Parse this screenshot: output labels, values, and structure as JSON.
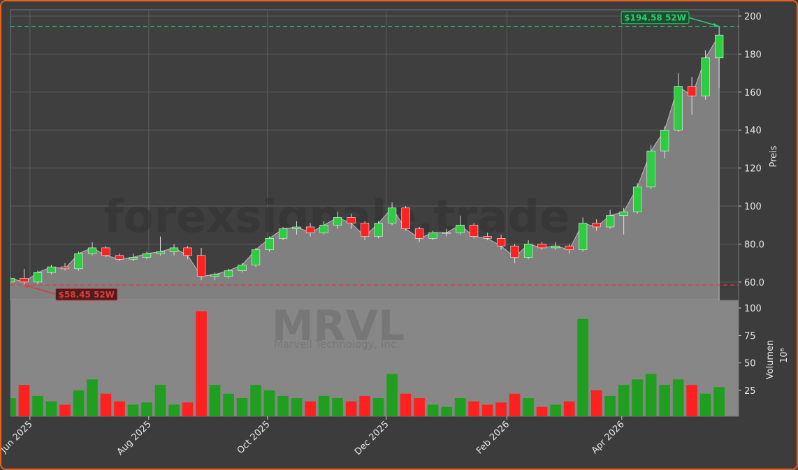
{
  "chart_data": {
    "type": "candlestick",
    "watermark": "forexsignale.trade",
    "ticker": "MRVL",
    "company": "Marvell Technology, Inc.",
    "ylabel": "Preis",
    "xlim": [
      "2025-05-22",
      "2026-05-31"
    ],
    "xticks": [
      {
        "value": "2025-06-01",
        "label": "Jun 2025"
      },
      {
        "value": "2025-08-01",
        "label": "Aug 2025"
      },
      {
        "value": "2025-10-01",
        "label": "Oct 2025"
      },
      {
        "value": "2025-12-01",
        "label": "Dec 2025"
      },
      {
        "value": "2026-02-01",
        "label": "Feb 2026"
      },
      {
        "value": "2026-04-01",
        "label": "Apr 2026"
      }
    ],
    "ylim": [
      50.4,
      203.3
    ],
    "yticks": [
      {
        "value": 60,
        "label": "60.0"
      },
      {
        "value": 80,
        "label": "80.0"
      },
      100,
      120,
      140,
      160,
      180,
      200
    ],
    "grid": true,
    "up_color": "#2ecc40",
    "down_color": "#ff2020",
    "area_color": "#808080",
    "x": [
      "2025-05-22",
      "2025-05-29",
      "2025-06-05",
      "2025-06-12",
      "2025-06-19",
      "2025-06-26",
      "2025-07-03",
      "2025-07-10",
      "2025-07-17",
      "2025-07-24",
      "2025-07-31",
      "2025-08-07",
      "2025-08-14",
      "2025-08-21",
      "2025-08-28",
      "2025-09-04",
      "2025-09-11",
      "2025-09-18",
      "2025-09-25",
      "2025-10-02",
      "2025-10-09",
      "2025-10-16",
      "2025-10-23",
      "2025-10-30",
      "2025-11-06",
      "2025-11-13",
      "2025-11-20",
      "2025-11-27",
      "2025-12-04",
      "2025-12-11",
      "2025-12-18",
      "2025-12-25",
      "2026-01-01",
      "2026-01-08",
      "2026-01-15",
      "2026-01-22",
      "2026-01-29",
      "2026-02-05",
      "2026-02-12",
      "2026-02-19",
      "2026-02-26",
      "2026-03-05",
      "2026-03-12",
      "2026-03-19",
      "2026-03-26",
      "2026-04-02",
      "2026-04-09",
      "2026-04-16",
      "2026-04-23",
      "2026-04-30",
      "2026-05-07",
      "2026-05-14",
      "2026-05-21"
    ],
    "open": [
      60,
      62,
      60,
      65,
      68,
      67,
      75,
      78,
      74,
      72,
      73,
      75,
      76,
      78,
      74,
      63,
      63,
      66,
      69,
      77,
      83,
      88,
      89,
      86,
      90,
      94,
      91,
      84,
      91,
      99,
      88,
      83,
      86,
      86,
      90,
      84,
      83,
      79,
      73,
      80,
      78,
      79,
      77,
      91,
      89,
      95,
      97,
      110,
      129,
      140,
      163,
      158,
      178
    ],
    "high": [
      63,
      67,
      66,
      69,
      70,
      76,
      81,
      79,
      75,
      75,
      76,
      84,
      80,
      79,
      78,
      65,
      67,
      70,
      78,
      84,
      89,
      92,
      91,
      92,
      97,
      96,
      92,
      92,
      102,
      100,
      89,
      87,
      88,
      95,
      91,
      86,
      85,
      80,
      82,
      81,
      81,
      80,
      94,
      93,
      98,
      99,
      112,
      132,
      142,
      170,
      168,
      182,
      194.58
    ],
    "low": [
      59,
      58.45,
      59,
      64,
      66,
      66,
      74,
      73,
      71,
      71,
      72,
      74,
      74,
      72,
      61,
      61,
      62,
      65,
      68,
      76,
      82,
      85,
      84,
      85,
      88,
      88,
      82,
      83,
      90,
      87,
      81,
      82,
      84,
      85,
      83,
      82,
      77,
      70,
      72,
      77,
      77,
      75,
      76,
      87,
      88,
      85,
      96,
      109,
      125,
      139,
      148,
      156,
      162
    ],
    "close": [
      62,
      60,
      65,
      68,
      67,
      75,
      78,
      74,
      72,
      73,
      75,
      76,
      78,
      74,
      63,
      64,
      66,
      69,
      77,
      83,
      88,
      89,
      86,
      90,
      94,
      91,
      84,
      91,
      99,
      88,
      83,
      86,
      86,
      90,
      84,
      83,
      79,
      73,
      80,
      78,
      79,
      77,
      91,
      89,
      95,
      97,
      110,
      129,
      140,
      163,
      158,
      178,
      190
    ],
    "annotations": [
      {
        "label": "$194.58 52W",
        "value": 194.58,
        "color": "#2ecc71"
      },
      {
        "label": "$58.45 52W",
        "value": 58.45,
        "color": "#e03c3c"
      }
    ],
    "volume": {
      "ylabel": "Volumen",
      "unit": "10⁶",
      "ylim": [
        1.5,
        107
      ],
      "yticks": [
        25,
        50,
        75,
        100
      ],
      "values": [
        18,
        30,
        20,
        15,
        12,
        25,
        35,
        22,
        15,
        12,
        14,
        30,
        12,
        14,
        97,
        30,
        22,
        18,
        30,
        25,
        20,
        18,
        15,
        20,
        18,
        15,
        20,
        18,
        40,
        22,
        18,
        12,
        10,
        18,
        15,
        12,
        14,
        22,
        18,
        10,
        12,
        15,
        90,
        25,
        20,
        30,
        35,
        40,
        30,
        35,
        30,
        22,
        28
      ]
    }
  }
}
